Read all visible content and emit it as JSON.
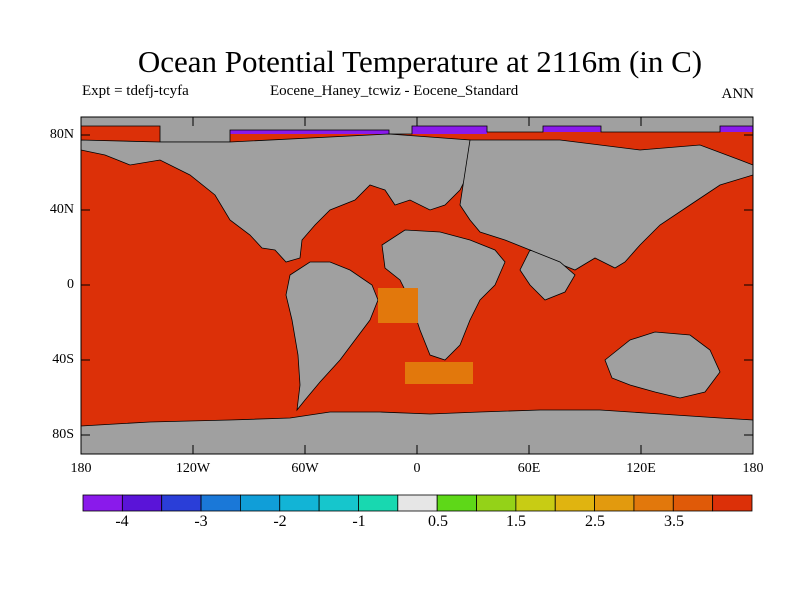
{
  "title": "Ocean Potential Temperature at 2116m (in C)",
  "subtitle_left": "Expt = tdefj-tcyfa",
  "subtitle_center": "Eocene_Haney_tcwiz - Eocene_Standard",
  "subtitle_right": "ANN",
  "lat_labels": [
    "80N",
    "40N",
    "0",
    "40S",
    "80S"
  ],
  "lon_labels": [
    "180",
    "120W",
    "60W",
    "0",
    "60E",
    "120E",
    "180"
  ],
  "colorbar": {
    "labels": [
      "-4",
      "-3",
      "-2",
      "-1",
      "0.5",
      "1.5",
      "2.5",
      "3.5"
    ],
    "colors": [
      "#8a1aeb",
      "#5a14d8",
      "#2a3ed8",
      "#1a78d8",
      "#109ed8",
      "#12b4d6",
      "#16c6cc",
      "#18d8b0",
      "#e6e6e6",
      "#5ed818",
      "#94d218",
      "#c8cc14",
      "#e0b410",
      "#e29a0e",
      "#e2780c",
      "#e05a08",
      "#dc3008"
    ]
  },
  "map": {
    "land_color": "#a0a0a0",
    "ocean_color": "#dc3008",
    "polar_color": "#8a1aeb",
    "warm_anomaly_color": "#e2780c"
  }
}
